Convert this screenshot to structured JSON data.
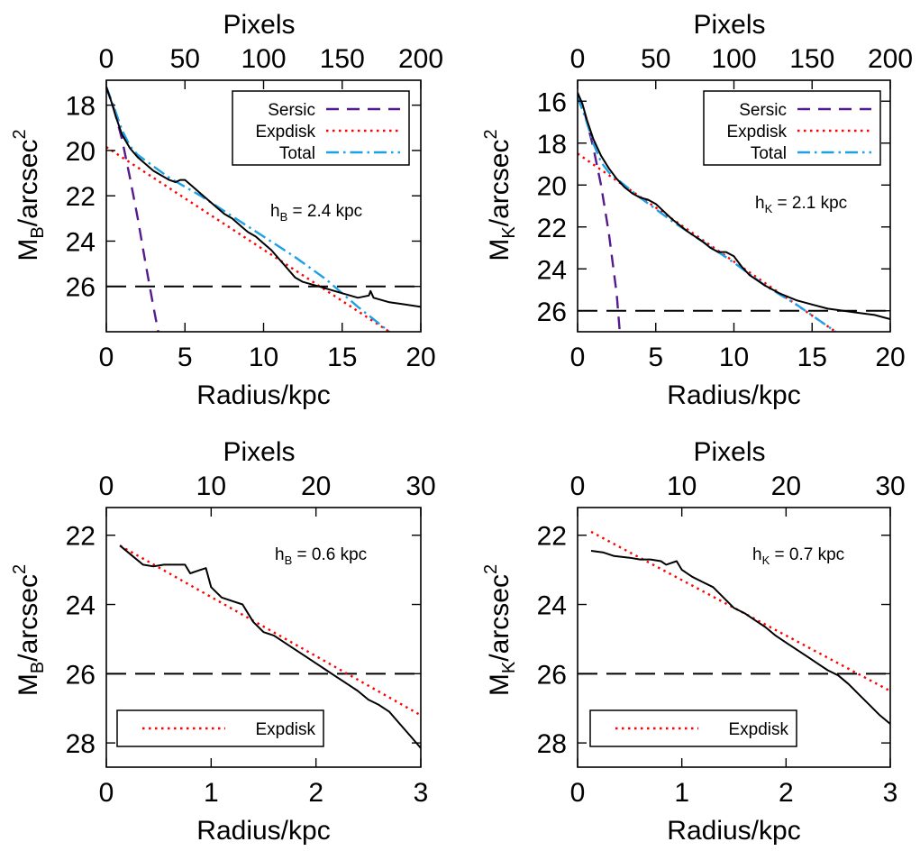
{
  "figure": {
    "panels": [
      {
        "id": "top-left",
        "top_axis_label": "Pixels",
        "top_ticks": [
          "0",
          "50",
          "100",
          "150",
          "200"
        ],
        "ylabel_main": "M",
        "ylabel_sub": "B",
        "ylabel_tail": "/arcsec",
        "ylabel_sup": "2",
        "xlabel": "Radius/kpc",
        "x_ticks": [
          "0",
          "5",
          "10",
          "15",
          "20"
        ],
        "y_ticks": [
          "18",
          "20",
          "22",
          "24",
          "26"
        ],
        "annotation_main": "h",
        "annotation_sub": "B",
        "annotation_tail": " = 2.4 kpc",
        "legend": [
          "Sersic",
          "Expdisk",
          "Total"
        ]
      },
      {
        "id": "top-right",
        "top_axis_label": "Pixels",
        "top_ticks": [
          "0",
          "50",
          "100",
          "150",
          "200"
        ],
        "ylabel_main": "M",
        "ylabel_sub": "K",
        "ylabel_tail": "/arcsec",
        "ylabel_sup": "2",
        "xlabel": "Radius/kpc",
        "x_ticks": [
          "0",
          "5",
          "10",
          "15",
          "20"
        ],
        "y_ticks": [
          "16",
          "18",
          "20",
          "22",
          "24",
          "26"
        ],
        "annotation_main": "h",
        "annotation_sub": "K",
        "annotation_tail": " = 2.1 kpc",
        "legend": [
          "Sersic",
          "Expdisk",
          "Total"
        ]
      },
      {
        "id": "bottom-left",
        "top_axis_label": "Pixels",
        "top_ticks": [
          "0",
          "10",
          "20",
          "30"
        ],
        "ylabel_main": "M",
        "ylabel_sub": "B",
        "ylabel_tail": "/arcsec",
        "ylabel_sup": "2",
        "xlabel": "Radius/kpc",
        "x_ticks": [
          "0",
          "1",
          "2",
          "3"
        ],
        "y_ticks": [
          "22",
          "24",
          "26",
          "28"
        ],
        "annotation_main": "h",
        "annotation_sub": "B",
        "annotation_tail": " = 0.6 kpc",
        "legend": [
          "Expdisk"
        ]
      },
      {
        "id": "bottom-right",
        "top_axis_label": "Pixels",
        "top_ticks": [
          "0",
          "10",
          "20",
          "30"
        ],
        "ylabel_main": "M",
        "ylabel_sub": "K",
        "ylabel_tail": "/arcsec",
        "ylabel_sup": "2",
        "xlabel": "Radius/kpc",
        "x_ticks": [
          "0",
          "1",
          "2",
          "3"
        ],
        "y_ticks": [
          "22",
          "24",
          "26",
          "28"
        ],
        "annotation_main": "h",
        "annotation_sub": "K",
        "annotation_tail": " = 0.7 kpc",
        "legend": [
          "Expdisk"
        ]
      }
    ]
  },
  "chart_data": [
    {
      "type": "line",
      "xlabel": "Radius/kpc",
      "ylabel": "M_B/arcsec^2",
      "top_xlabel": "Pixels",
      "xlim": [
        0,
        20
      ],
      "ylim": [
        28,
        16.9
      ],
      "y_inverted": true,
      "top_xlim": [
        0,
        200
      ],
      "annotation": "h_B = 2.4 kpc",
      "legend_position": "top-right",
      "series": [
        {
          "name": "data",
          "color": "#000000",
          "style": "solid",
          "x": [
            0,
            0.3,
            0.6,
            1.0,
            1.5,
            2.0,
            2.5,
            3.0,
            3.5,
            4.0,
            4.4,
            4.7,
            5.0,
            5.5,
            6.0,
            6.5,
            7.0,
            7.5,
            8.0,
            8.5,
            9.0,
            9.5,
            10.0,
            10.5,
            11.0,
            11.5,
            12.0,
            12.5,
            13.0,
            13.5,
            14.0,
            15.0,
            16.0,
            16.7,
            16.8,
            17.0,
            18.0,
            19.0,
            20.0
          ],
          "y": [
            17.2,
            17.8,
            18.5,
            19.3,
            19.9,
            20.3,
            20.6,
            20.9,
            21.1,
            21.3,
            21.4,
            21.3,
            21.3,
            21.6,
            21.9,
            22.2,
            22.5,
            22.8,
            23.0,
            23.3,
            23.6,
            23.8,
            24.1,
            24.4,
            24.8,
            25.2,
            25.6,
            25.8,
            25.9,
            26.0,
            26.1,
            26.3,
            26.5,
            26.4,
            26.2,
            26.5,
            26.7,
            26.8,
            26.9
          ]
        },
        {
          "name": "Sersic",
          "color": "#551a8b",
          "style": "dashed",
          "x": [
            0,
            0.5,
            1.0,
            1.5,
            2.0,
            2.5,
            3.0,
            3.3
          ],
          "y": [
            17.2,
            18.2,
            19.5,
            21.2,
            23.0,
            25.0,
            26.9,
            28.0
          ]
        },
        {
          "name": "Expdisk",
          "color": "#ff0000",
          "style": "dotted",
          "x": [
            0,
            18
          ],
          "y": [
            19.85,
            28.0
          ]
        },
        {
          "name": "Total",
          "color": "#1ea0e6",
          "style": "dashdot",
          "x": [
            0,
            0.5,
            1.0,
            1.5,
            2.0,
            3.0,
            4.0,
            6.0,
            8.0,
            10.0,
            12.0,
            14.0,
            16.0,
            18.0
          ],
          "y": [
            17.2,
            18.1,
            19.1,
            19.8,
            20.2,
            20.7,
            21.2,
            22.0,
            22.9,
            23.8,
            24.7,
            25.7,
            26.9,
            28.0
          ]
        }
      ],
      "reference_lines": [
        {
          "y": 26,
          "color": "#000000",
          "style": "long-dash"
        }
      ]
    },
    {
      "type": "line",
      "xlabel": "Radius/kpc",
      "ylabel": "M_K/arcsec^2",
      "top_xlabel": "Pixels",
      "xlim": [
        0,
        20
      ],
      "ylim": [
        27,
        15.0
      ],
      "y_inverted": true,
      "top_xlim": [
        0,
        200
      ],
      "annotation": "h_K = 2.1 kpc",
      "legend_position": "top-right",
      "series": [
        {
          "name": "data",
          "color": "#000000",
          "style": "solid",
          "x": [
            0,
            0.3,
            0.6,
            1.0,
            1.5,
            2.0,
            2.5,
            3.0,
            3.5,
            4.0,
            4.5,
            5.0,
            6.0,
            7.0,
            8.0,
            8.5,
            9.0,
            9.5,
            10.0,
            10.5,
            11.0,
            12.0,
            13.0,
            14.0,
            15.0,
            16.0,
            17.0,
            18.0,
            19.0,
            20.0
          ],
          "y": [
            15.6,
            16.1,
            16.9,
            17.8,
            18.6,
            19.2,
            19.7,
            20.1,
            20.4,
            20.6,
            20.7,
            20.9,
            21.6,
            22.2,
            22.7,
            23.0,
            23.2,
            23.2,
            23.4,
            23.9,
            24.3,
            24.8,
            25.2,
            25.5,
            25.7,
            25.9,
            26.0,
            26.1,
            26.2,
            26.4
          ]
        },
        {
          "name": "Sersic",
          "color": "#551a8b",
          "style": "dashed",
          "x": [
            0,
            0.5,
            1.0,
            1.5,
            2.0,
            2.5,
            2.7
          ],
          "y": [
            15.6,
            16.7,
            18.2,
            20.0,
            22.3,
            25.2,
            27.0
          ]
        },
        {
          "name": "Expdisk",
          "color": "#ff0000",
          "style": "dotted",
          "x": [
            0,
            16.5
          ],
          "y": [
            18.5,
            27.0
          ]
        },
        {
          "name": "Total",
          "color": "#1ea0e6",
          "style": "dashdot",
          "x": [
            0,
            0.5,
            1.0,
            1.5,
            2.0,
            3.0,
            4.0,
            6.0,
            8.0,
            10.0,
            12.0,
            14.0,
            16.5
          ],
          "y": [
            15.8,
            16.8,
            18.0,
            18.9,
            19.4,
            20.0,
            20.6,
            21.7,
            22.7,
            23.7,
            24.8,
            25.7,
            27.0
          ]
        }
      ],
      "reference_lines": [
        {
          "y": 26,
          "color": "#000000",
          "style": "long-dash"
        }
      ]
    },
    {
      "type": "line",
      "xlabel": "Radius/kpc",
      "ylabel": "M_B/arcsec^2",
      "top_xlabel": "Pixels",
      "xlim": [
        0,
        3
      ],
      "ylim": [
        28.7,
        21.2
      ],
      "y_inverted": true,
      "top_xlim": [
        0,
        30
      ],
      "annotation": "h_B = 0.6 kpc",
      "legend_position": "bottom-left",
      "series": [
        {
          "name": "data",
          "color": "#000000",
          "style": "solid",
          "x": [
            0.13,
            0.25,
            0.35,
            0.45,
            0.55,
            0.65,
            0.75,
            0.8,
            0.9,
            0.95,
            1.0,
            1.1,
            1.2,
            1.3,
            1.4,
            1.5,
            1.6,
            1.7,
            1.8,
            1.9,
            2.0,
            2.1,
            2.2,
            2.3,
            2.4,
            2.5,
            2.6,
            2.7,
            2.8,
            2.9,
            3.0
          ],
          "y": [
            22.3,
            22.6,
            22.85,
            22.9,
            22.85,
            22.85,
            22.85,
            23.1,
            23.0,
            22.95,
            23.5,
            23.8,
            23.9,
            24.0,
            24.5,
            24.8,
            24.9,
            25.1,
            25.3,
            25.5,
            25.7,
            25.9,
            26.1,
            26.3,
            26.5,
            26.75,
            26.9,
            27.1,
            27.45,
            27.8,
            28.15
          ]
        },
        {
          "name": "Expdisk",
          "color": "#ff0000",
          "style": "dotted",
          "x": [
            0.13,
            3.0
          ],
          "y": [
            22.3,
            27.2
          ]
        }
      ],
      "reference_lines": [
        {
          "y": 26,
          "color": "#000000",
          "style": "long-dash"
        }
      ]
    },
    {
      "type": "line",
      "xlabel": "Radius/kpc",
      "ylabel": "M_K/arcsec^2",
      "top_xlabel": "Pixels",
      "xlim": [
        0,
        3
      ],
      "ylim": [
        28.7,
        21.2
      ],
      "y_inverted": true,
      "top_xlim": [
        0,
        30
      ],
      "annotation": "h_K = 0.7 kpc",
      "legend_position": "bottom-left",
      "series": [
        {
          "name": "data",
          "color": "#000000",
          "style": "solid",
          "x": [
            0.13,
            0.25,
            0.35,
            0.5,
            0.6,
            0.7,
            0.8,
            0.85,
            0.9,
            0.95,
            1.0,
            1.1,
            1.2,
            1.3,
            1.4,
            1.5,
            1.6,
            1.7,
            1.8,
            1.9,
            2.0,
            2.1,
            2.2,
            2.3,
            2.4,
            2.5,
            2.6,
            2.7,
            2.8,
            2.9,
            3.0
          ],
          "y": [
            22.45,
            22.5,
            22.6,
            22.65,
            22.7,
            22.7,
            22.75,
            22.85,
            22.8,
            22.75,
            23.0,
            23.2,
            23.35,
            23.5,
            23.8,
            24.1,
            24.25,
            24.45,
            24.65,
            24.9,
            25.1,
            25.3,
            25.5,
            25.7,
            25.9,
            26.05,
            26.3,
            26.6,
            26.9,
            27.2,
            27.45
          ]
        },
        {
          "name": "Expdisk",
          "color": "#ff0000",
          "style": "dotted",
          "x": [
            0.13,
            3.0
          ],
          "y": [
            21.9,
            26.5
          ]
        }
      ],
      "reference_lines": [
        {
          "y": 26,
          "color": "#000000",
          "style": "long-dash"
        }
      ]
    }
  ]
}
